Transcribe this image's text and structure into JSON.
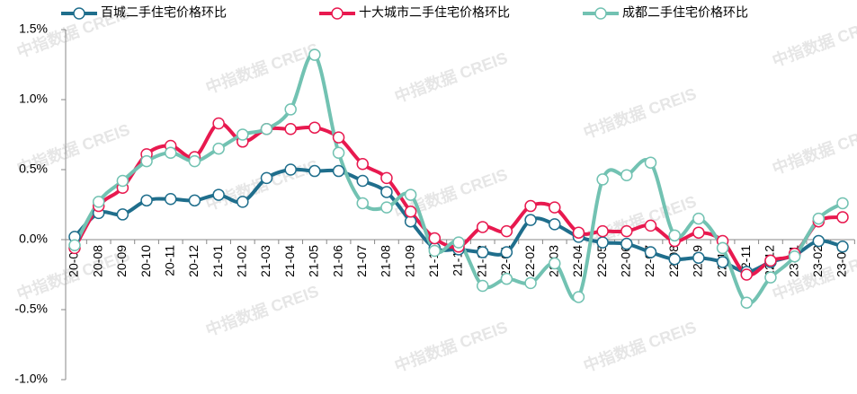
{
  "chart_data": {
    "type": "line",
    "categories": [
      "20-07",
      "20-08",
      "20-09",
      "20-10",
      "20-11",
      "20-12",
      "21-01",
      "21-02",
      "21-03",
      "21-04",
      "21-05",
      "21-06",
      "21-07",
      "21-08",
      "21-09",
      "21-10",
      "21-11",
      "21-12",
      "22-01",
      "22-02",
      "22-03",
      "22-04",
      "22-05",
      "22-06",
      "22-07",
      "22-08",
      "22-09",
      "22-10",
      "22-11",
      "22-12",
      "23-01",
      "23-02",
      "23-03"
    ],
    "series": [
      {
        "name": "百城二手住宅价格环比",
        "color": "#1f6e8c",
        "values": [
          0.02,
          0.19,
          0.18,
          0.28,
          0.29,
          0.28,
          0.32,
          0.27,
          0.44,
          0.5,
          0.49,
          0.49,
          0.42,
          0.34,
          0.13,
          -0.06,
          -0.07,
          -0.09,
          -0.09,
          0.14,
          0.11,
          0.02,
          -0.02,
          -0.03,
          -0.09,
          -0.14,
          -0.13,
          -0.16,
          -0.23,
          -0.16,
          -0.11,
          -0.01,
          -0.05
        ]
      },
      {
        "name": "十大城市二手住宅价格环比",
        "color": "#e8194f",
        "values": [
          -0.06,
          0.24,
          0.37,
          0.61,
          0.67,
          0.59,
          0.83,
          0.7,
          0.79,
          0.79,
          0.8,
          0.73,
          0.54,
          0.44,
          0.2,
          0.01,
          -0.05,
          0.09,
          0.06,
          0.24,
          0.23,
          0.05,
          0.06,
          0.06,
          0.1,
          -0.01,
          0.05,
          -0.01,
          -0.25,
          -0.15,
          -0.1,
          0.13,
          0.16
        ]
      },
      {
        "name": "成都二手住宅价格环比",
        "color": "#72c2b2",
        "values": [
          -0.04,
          0.27,
          0.42,
          0.56,
          0.62,
          0.56,
          0.65,
          0.75,
          0.79,
          0.93,
          1.32,
          0.62,
          0.26,
          0.23,
          0.32,
          -0.08,
          -0.02,
          -0.33,
          -0.28,
          -0.31,
          -0.17,
          -0.41,
          0.43,
          0.46,
          0.55,
          0.03,
          0.15,
          -0.06,
          -0.45,
          -0.27,
          -0.12,
          0.15,
          0.26
        ]
      }
    ],
    "ylim": [
      -1.0,
      1.5
    ],
    "yticks": [
      {
        "value": -1.0,
        "label": "-1.0%"
      },
      {
        "value": -0.5,
        "label": "-0.5%"
      },
      {
        "value": 0,
        "label": "0.0%"
      },
      {
        "value": 0.5,
        "label": "0.5%"
      },
      {
        "value": 1.0,
        "label": "1.0%"
      },
      {
        "value": 1.5,
        "label": "1.5%"
      }
    ],
    "legend": "top",
    "watermark": "中指数据 CREIS"
  }
}
